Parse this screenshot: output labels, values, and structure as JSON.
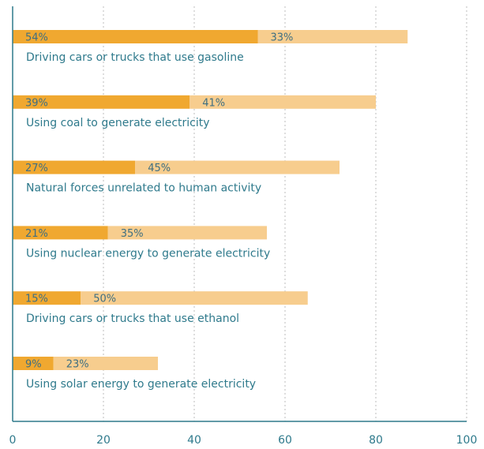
{
  "chart_data": {
    "type": "bar",
    "orientation": "horizontal",
    "stacked": true,
    "categories": [
      "Driving cars or trucks that use gasoline",
      "Using coal to generate electricity",
      "Natural forces unrelated to human activity",
      "Using nuclear energy to generate electricity",
      "Driving cars or trucks that use ethanol",
      "Using solar energy to generate electricity"
    ],
    "series": [
      {
        "values": [
          54,
          39,
          27,
          21,
          15,
          9
        ],
        "labels": [
          "54%",
          "39%",
          "27%",
          "21%",
          "15%",
          "9%"
        ],
        "color": "#f0a830"
      },
      {
        "values": [
          33,
          41,
          45,
          35,
          50,
          23
        ],
        "labels": [
          "33%",
          "41%",
          "45%",
          "35%",
          "50%",
          "23%"
        ],
        "color": "#f7cd8e"
      }
    ],
    "xlim": [
      0,
      100
    ],
    "xticks": [
      "0",
      "20",
      "40",
      "60",
      "80",
      "100"
    ],
    "grid": "vertical-dotted",
    "colors": {
      "axis": "#2f7a8c",
      "grid": "#c8c8c8",
      "text": "#2f7a8c",
      "bar_label": "#3f6f82"
    }
  }
}
